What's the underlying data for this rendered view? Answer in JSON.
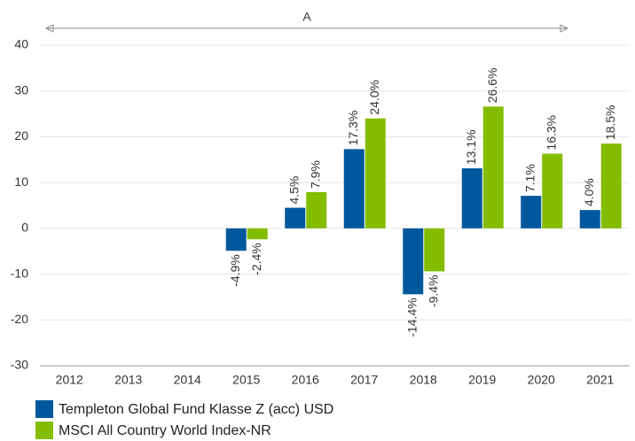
{
  "chart_data": {
    "type": "bar",
    "annotation": "A",
    "categories": [
      "2012",
      "2013",
      "2014",
      "2015",
      "2016",
      "2017",
      "2018",
      "2019",
      "2020",
      "2021"
    ],
    "series": [
      {
        "name": "Templeton Global Fund Klasse Z (acc) USD",
        "color": "#00589c",
        "values": [
          null,
          null,
          null,
          -4.9,
          4.5,
          17.3,
          -14.4,
          13.1,
          7.1,
          4.0
        ],
        "value_labels": [
          null,
          null,
          null,
          "-4.9%",
          "4.5%",
          "17.3%",
          "-14.4%",
          "13.1%",
          "7.1%",
          "4.0%"
        ]
      },
      {
        "name": "MSCI All Country World Index-NR",
        "color": "#84bd00",
        "values": [
          null,
          null,
          null,
          -2.4,
          7.9,
          24.0,
          -9.4,
          26.6,
          16.3,
          18.5
        ],
        "value_labels": [
          null,
          null,
          null,
          "-2.4%",
          "7.9%",
          "24.0%",
          "-9.4%",
          "26.6%",
          "16.3%",
          "18.5%"
        ]
      }
    ],
    "ylim": [
      -30,
      40
    ],
    "yticks": [
      -30,
      -20,
      -10,
      0,
      10,
      20,
      30,
      40
    ],
    "grid": true
  }
}
